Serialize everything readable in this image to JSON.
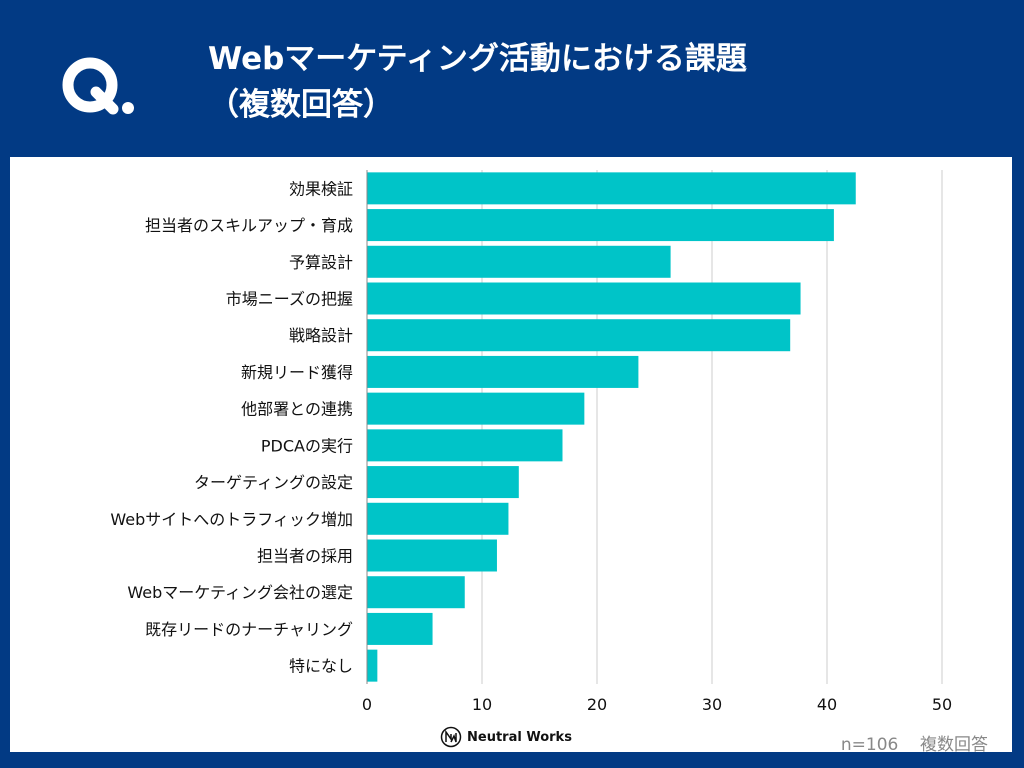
{
  "header": {
    "icon": "q-letter-icon",
    "title_line1": "Webマーケティング活動における課題",
    "title_line2": "（複数回答）"
  },
  "footer": {
    "logo_text": "Neutral Works",
    "sample": "n=106",
    "note": "複数回答"
  },
  "colors": {
    "background": "#023a84",
    "bar": "#00c4c8",
    "grid": "#cccccc"
  },
  "chart_data": {
    "type": "bar",
    "orientation": "horizontal",
    "categories": [
      "効果検証",
      "担当者のスキルアップ・育成",
      "予算設計",
      "市場ニーズの把握",
      "戦略設計",
      "新規リード獲得",
      "他部署との連携",
      "PDCAの実行",
      "ターゲティングの設定",
      "Webサイトへのトラフィック増加",
      "担当者の採用",
      "Webマーケティング会社の選定",
      "既存リードのナーチャリング",
      "特になし"
    ],
    "values": [
      42.5,
      40.6,
      26.4,
      37.7,
      36.8,
      23.6,
      18.9,
      17.0,
      13.2,
      12.3,
      11.3,
      8.5,
      5.7,
      0.9
    ],
    "xlim": [
      0,
      50
    ],
    "xticks": [
      "0",
      "10",
      "20",
      "30",
      "40",
      "50"
    ],
    "grid": true
  }
}
